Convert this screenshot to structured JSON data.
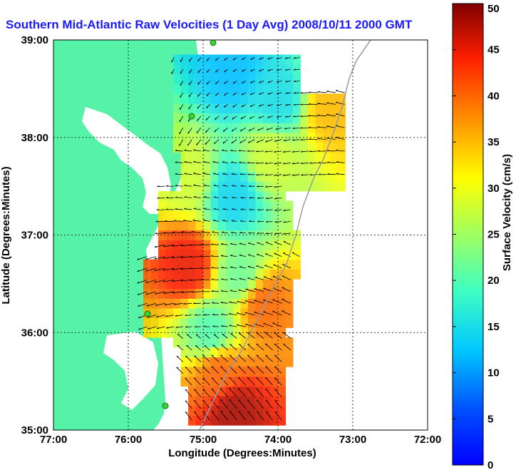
{
  "chart_data": {
    "type": "heatmap",
    "title": "Southern Mid-Atlantic Raw Velocities (1 Day Avg) 2008/10/11 2000 GMT",
    "xlabel": "Longitude (Degrees:Minutes)",
    "ylabel": "Latitude (Degrees:Minutes)",
    "xlim": [
      -77,
      -72
    ],
    "ylim": [
      35,
      39
    ],
    "xticks": [
      "77:00",
      "76:00",
      "75:00",
      "74:00",
      "73:00",
      "72:00"
    ],
    "yticks": [
      "39:00",
      "38:00",
      "37:00",
      "36:00",
      "35:00"
    ],
    "grid": true,
    "colorbar": {
      "label": "Surface Velocity (cm/s)",
      "range": [
        0,
        50
      ],
      "ticks": [
        "50",
        "45",
        "40",
        "35",
        "30",
        "25",
        "20",
        "15",
        "10",
        "5",
        "0"
      ],
      "colormap": "jet"
    },
    "speed_regions": [
      {
        "lon": -74.6,
        "lat": 38.7,
        "speed": 12
      },
      {
        "lon": -74.0,
        "lat": 38.4,
        "speed": 15
      },
      {
        "lon": -74.1,
        "lat": 37.8,
        "speed": 28
      },
      {
        "lon": -73.3,
        "lat": 38.3,
        "speed": 35
      },
      {
        "lon": -74.6,
        "lat": 37.4,
        "speed": 14
      },
      {
        "lon": -75.2,
        "lat": 37.6,
        "speed": 28
      },
      {
        "lon": -75.2,
        "lat": 36.7,
        "speed": 45
      },
      {
        "lon": -74.5,
        "lat": 36.6,
        "speed": 22
      },
      {
        "lon": -74.2,
        "lat": 36.3,
        "speed": 40
      },
      {
        "lon": -74.9,
        "lat": 36.0,
        "speed": 20
      },
      {
        "lon": -74.8,
        "lat": 35.6,
        "speed": 40
      },
      {
        "lon": -74.6,
        "lat": 35.2,
        "speed": 48
      }
    ]
  }
}
